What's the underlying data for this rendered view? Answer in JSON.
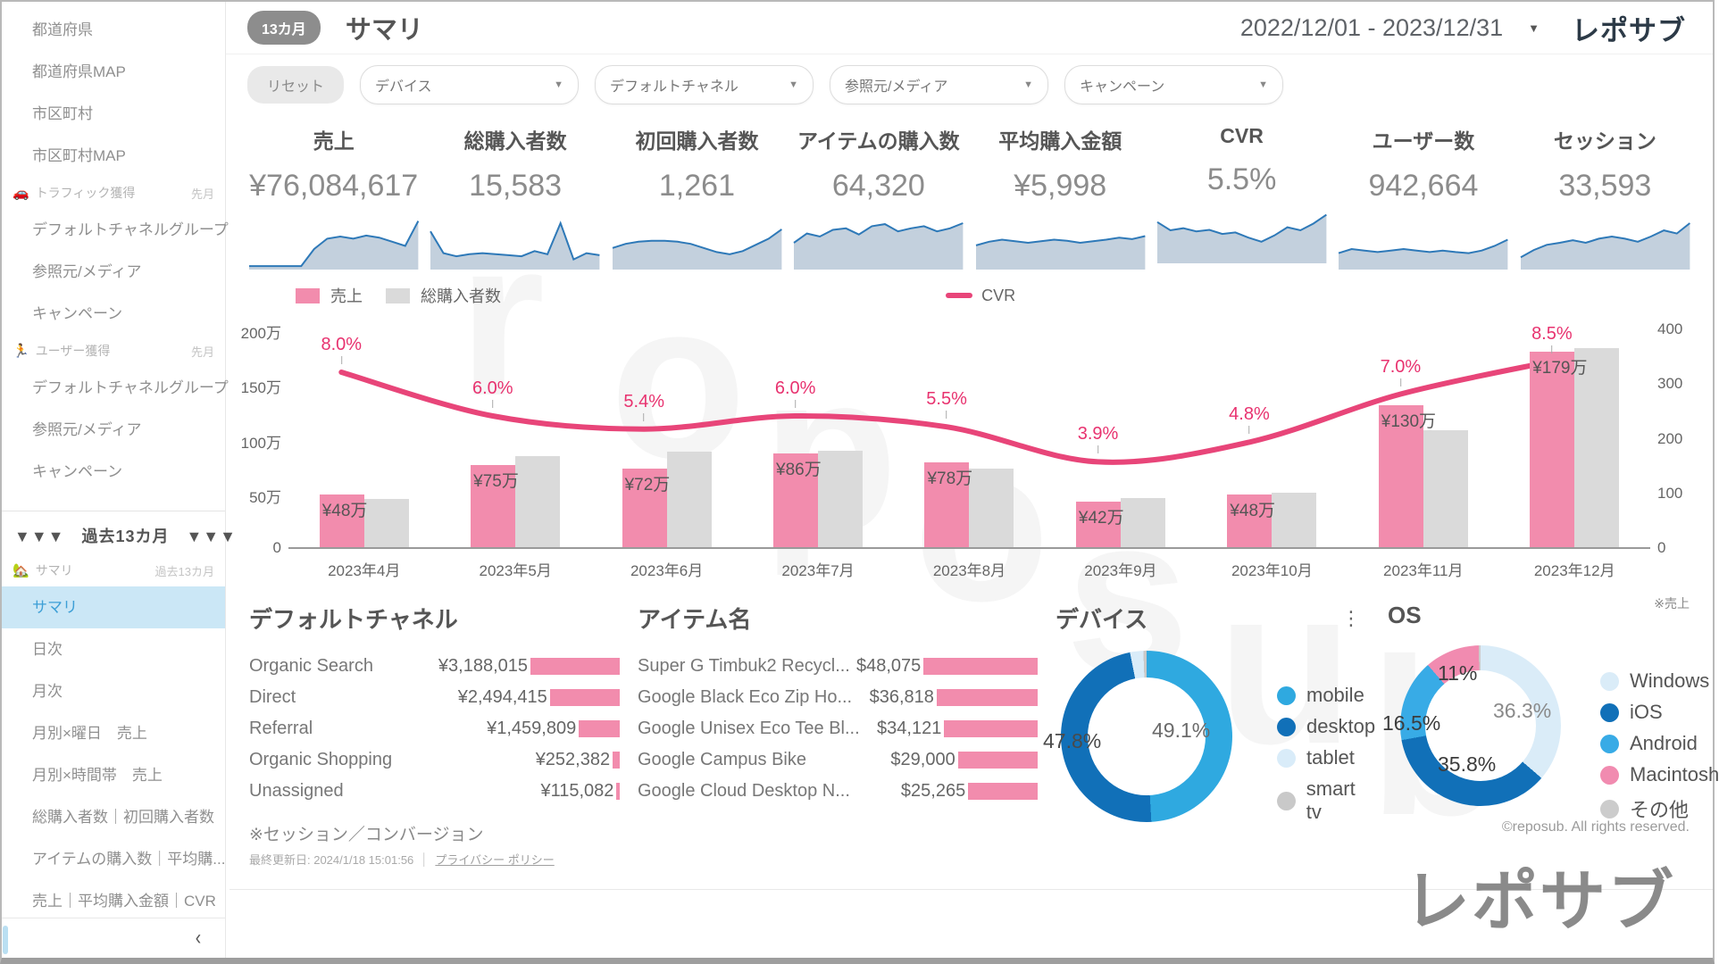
{
  "header": {
    "badge": "13カ月",
    "title": "サマリ",
    "date_range": "2022/12/01 - 2023/12/31",
    "dropdown_icon": "▼",
    "logo": "レポサブ"
  },
  "sidebar": {
    "collapse_icon": "‹",
    "items": [
      {
        "type": "item",
        "label": "都道府県"
      },
      {
        "type": "item",
        "label": "都道府県MAP"
      },
      {
        "type": "item",
        "label": "市区町村"
      },
      {
        "type": "item",
        "label": "市区町村MAP"
      },
      {
        "type": "header",
        "icon": "🚗",
        "icon_name": "car-icon",
        "label": "トラフィック獲得",
        "right": "先月"
      },
      {
        "type": "item",
        "label": "デフォルトチャネルグループ"
      },
      {
        "type": "item",
        "label": "参照元/メディア"
      },
      {
        "type": "item",
        "label": "キャンペーン"
      },
      {
        "type": "header",
        "icon": "🏃",
        "icon_name": "runner-icon",
        "label": "ユーザー獲得",
        "right": "先月"
      },
      {
        "type": "item",
        "label": "デフォルトチャネルグループ"
      },
      {
        "type": "item",
        "label": "参照元/メディア"
      },
      {
        "type": "item",
        "label": "キャンペーン"
      },
      {
        "type": "divider"
      },
      {
        "type": "banner",
        "label": "▼▼▼　過去13カ月　▼▼▼"
      },
      {
        "type": "header",
        "icon": "🏡",
        "icon_name": "house-icon",
        "label": "サマリ",
        "right": "過去13カ月"
      },
      {
        "type": "item",
        "label": "サマリ",
        "selected": true
      },
      {
        "type": "item",
        "label": "日次"
      },
      {
        "type": "item",
        "label": "月次"
      },
      {
        "type": "item",
        "label": "月別×曜日　売上"
      },
      {
        "type": "item",
        "label": "月別×時間帯　売上"
      },
      {
        "type": "item",
        "label": "総購入者数｜初回購入者数"
      },
      {
        "type": "item",
        "label": "アイテムの購入数｜平均購..."
      },
      {
        "type": "item",
        "label": "売上｜平均購入金額｜CVR"
      },
      {
        "type": "divider"
      }
    ]
  },
  "filters": {
    "reset": "リセット",
    "dropdowns": [
      "デバイス",
      "デフォルトチャネル",
      "参照元/メディア",
      "キャンペーン"
    ]
  },
  "kpis": [
    {
      "label": "売上",
      "value": "¥76,084,617",
      "spark": [
        5,
        5,
        5,
        5,
        5,
        38,
        58,
        62,
        58,
        64,
        60,
        52,
        44,
        92
      ]
    },
    {
      "label": "総購入者数",
      "value": "15,583",
      "spark": [
        72,
        30,
        24,
        28,
        30,
        28,
        26,
        24,
        34,
        28,
        88,
        18,
        30,
        26
      ]
    },
    {
      "label": "初回購入者数",
      "value": "1,261",
      "spark": [
        40,
        48,
        52,
        54,
        54,
        52,
        48,
        40,
        32,
        28,
        34,
        46,
        58,
        76
      ]
    },
    {
      "label": "アイテムの購入数",
      "value": "64,320",
      "spark": [
        50,
        68,
        62,
        75,
        78,
        66,
        82,
        86,
        72,
        78,
        82,
        72,
        78,
        88
      ]
    },
    {
      "label": "平均購入金額",
      "value": "¥5,998",
      "spark": [
        45,
        52,
        56,
        53,
        50,
        53,
        56,
        54,
        50,
        53,
        56,
        60,
        57,
        63
      ]
    },
    {
      "label": "CVR",
      "value": "5.5%",
      "spark": [
        78,
        62,
        66,
        60,
        63,
        55,
        58,
        48,
        40,
        52,
        68,
        62,
        75,
        92
      ]
    },
    {
      "label": "ユーザー数",
      "value": "942,664",
      "spark": [
        30,
        38,
        35,
        32,
        35,
        38,
        35,
        32,
        35,
        32,
        30,
        35,
        44,
        56
      ]
    },
    {
      "label": "セッション",
      "value": "33,593",
      "spark": [
        22,
        36,
        46,
        50,
        55,
        50,
        58,
        62,
        58,
        52,
        62,
        74,
        68,
        88
      ]
    }
  ],
  "spark_style": {
    "line_color": "#2e79b8",
    "fill_color": "#c3d0dd"
  },
  "chart_data": {
    "type": "bar+line",
    "categories": [
      "2023年4月",
      "2023年5月",
      "2023年6月",
      "2023年7月",
      "2023年8月",
      "2023年9月",
      "2023年10月",
      "2023年11月",
      "2023年12月"
    ],
    "series": [
      {
        "name": "売上",
        "type": "bar",
        "color": "#f28cad",
        "unit": "万円",
        "values": [
          48,
          75,
          72,
          86,
          78,
          42,
          48,
          130,
          179
        ],
        "labels": [
          "¥48万",
          "¥75万",
          "¥72万",
          "¥86万",
          "¥78万",
          "¥42万",
          "¥48万",
          "¥130万",
          "¥179万"
        ]
      },
      {
        "name": "総購入者数",
        "type": "bar",
        "color": "#dadada",
        "axis": "right",
        "values_left_scale_10k": [
          44,
          83,
          87,
          88,
          72,
          45,
          50,
          107,
          182
        ]
      },
      {
        "name": "CVR",
        "type": "line",
        "color": "#e84579",
        "label_color": "#e8326f",
        "values_pct": [
          8.0,
          6.0,
          5.4,
          6.0,
          5.5,
          3.9,
          4.8,
          7.0,
          8.5
        ],
        "labels": [
          "8.0%",
          "6.0%",
          "5.4%",
          "6.0%",
          "5.5%",
          "3.9%",
          "4.8%",
          "7.0%",
          "8.5%"
        ]
      }
    ],
    "left_axis": {
      "ticks": [
        "200万",
        "150万",
        "100万",
        "50万",
        "0"
      ],
      "max_10k": 200
    },
    "right_axis": {
      "ticks": [
        "400",
        "300",
        "200",
        "100",
        "0"
      ],
      "max": 400
    },
    "grid": false,
    "legend_position": "top"
  },
  "panels": {
    "channel": {
      "title": "デフォルトチャネル",
      "rows": [
        {
          "label": "Organic Search",
          "value": "¥3,188,015",
          "num": 3188015
        },
        {
          "label": "Direct",
          "value": "¥2,494,415",
          "num": 2494415
        },
        {
          "label": "Referral",
          "value": "¥1,459,809",
          "num": 1459809
        },
        {
          "label": "Organic Shopping",
          "value": "¥252,382",
          "num": 252382
        },
        {
          "label": "Unassigned",
          "value": "¥115,082",
          "num": 115082
        }
      ],
      "bar_color": "#f28cad"
    },
    "items": {
      "title": "アイテム名",
      "rows": [
        {
          "label": "Super G Timbuk2 Recycl...",
          "value": "$48,075",
          "num": 48075
        },
        {
          "label": "Google Black Eco Zip Ho...",
          "value": "$36,818",
          "num": 36818
        },
        {
          "label": "Google Unisex Eco Tee Bl...",
          "value": "$34,121",
          "num": 34121
        },
        {
          "label": "Google Campus Bike",
          "value": "$29,000",
          "num": 29000
        },
        {
          "label": "Google Cloud Desktop N...",
          "value": "$25,265",
          "num": 25265
        }
      ],
      "bar_color": "#f28cad"
    },
    "device": {
      "title": "デバイス",
      "menu_icon": "⋮",
      "chart_data": {
        "type": "pie",
        "slices": [
          {
            "label": "mobile",
            "pct": 49.1,
            "color": "#2fa9e0",
            "pct_label": "49.1%",
            "label_color": "#6b6b6b"
          },
          {
            "label": "desktop",
            "pct": 47.8,
            "color": "#1170b8",
            "pct_label": "47.8%",
            "label_color": "#4a4a4a"
          },
          {
            "label": "tablet",
            "pct": 2.5,
            "color": "#d9ecf9",
            "pct_label": "",
            "label_color": ""
          },
          {
            "label": "smart tv",
            "pct": 0.6,
            "color": "#c9c9c9",
            "pct_label": "",
            "label_color": ""
          }
        ]
      }
    },
    "os": {
      "title": "OS",
      "note": "※売上",
      "copyright": "©reposub. All rights reserved.",
      "chart_data": {
        "type": "pie",
        "slices": [
          {
            "label": "Windows",
            "pct": 36.3,
            "color": "#daecf8",
            "pct_label": "36.3%",
            "label_color": "#8a8a8a"
          },
          {
            "label": "iOS",
            "pct": 35.8,
            "color": "#1170b8",
            "pct_label": "35.8%",
            "label_color": "#3c3c3c"
          },
          {
            "label": "Android",
            "pct": 16.5,
            "color": "#38abe6",
            "pct_label": "16.5%",
            "label_color": "#3c3c3c"
          },
          {
            "label": "Macintosh",
            "pct": 11.0,
            "color": "#f18bb0",
            "pct_label": "11%",
            "label_color": "#3c3c3c"
          },
          {
            "label": "その他",
            "pct": 0.4,
            "color": "#cccccc",
            "pct_label": "",
            "label_color": ""
          }
        ]
      }
    }
  },
  "footnotes": {
    "session": "※セッション／コンバージョン",
    "updated": "最終更新日: 2024/1/18 15:01:56",
    "separator": "│",
    "privacy": "プライバシー ポリシー"
  },
  "footer": {
    "logo": "レポサブ"
  }
}
